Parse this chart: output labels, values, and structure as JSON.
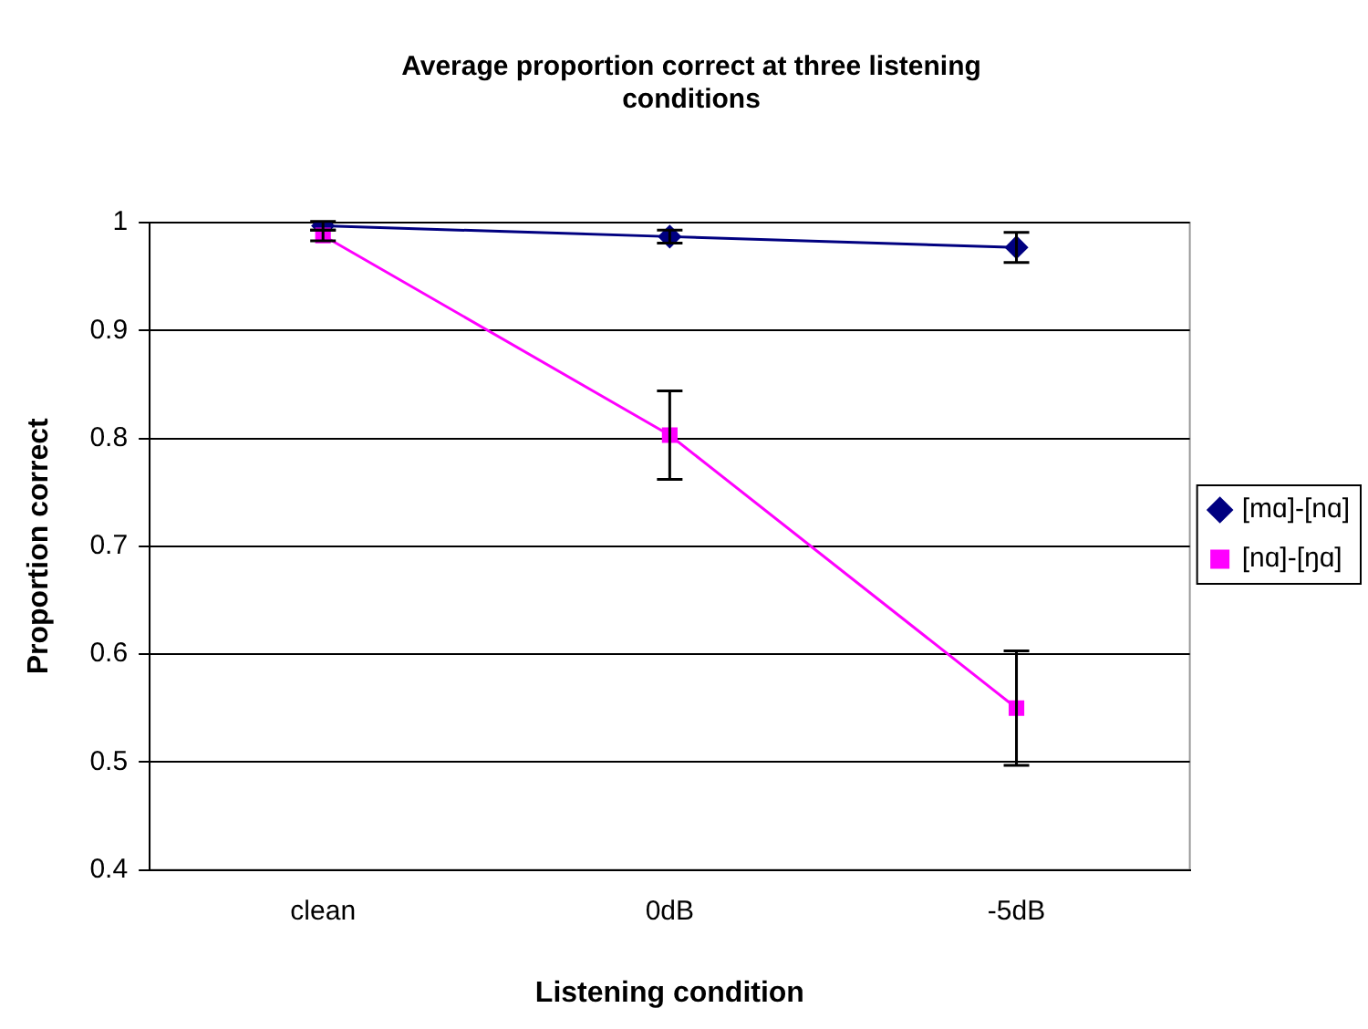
{
  "chart_data": {
    "type": "line",
    "title": "Average proportion correct at three listening conditions",
    "xlabel": "Listening condition",
    "ylabel": "Proportion correct",
    "categories": [
      "clean",
      "0dB",
      "-5dB"
    ],
    "series": [
      {
        "name": "[mɑ]-[nɑ]",
        "color": "#000080",
        "marker": "diamond",
        "values": [
          0.997,
          0.987,
          0.977
        ],
        "errors": [
          0.004,
          0.006,
          0.014
        ]
      },
      {
        "name": "[nɑ]-[ŋɑ]",
        "color": "#ff00ff",
        "marker": "square",
        "values": [
          0.988,
          0.803,
          0.55
        ],
        "errors": [
          0.005,
          0.041,
          0.053
        ]
      }
    ],
    "ylim": [
      0.4,
      1
    ],
    "yticks": [
      0.4,
      0.5,
      0.6,
      0.7,
      0.8,
      0.9,
      1
    ],
    "grid": "y",
    "legend": "right",
    "line_style": "solid"
  }
}
